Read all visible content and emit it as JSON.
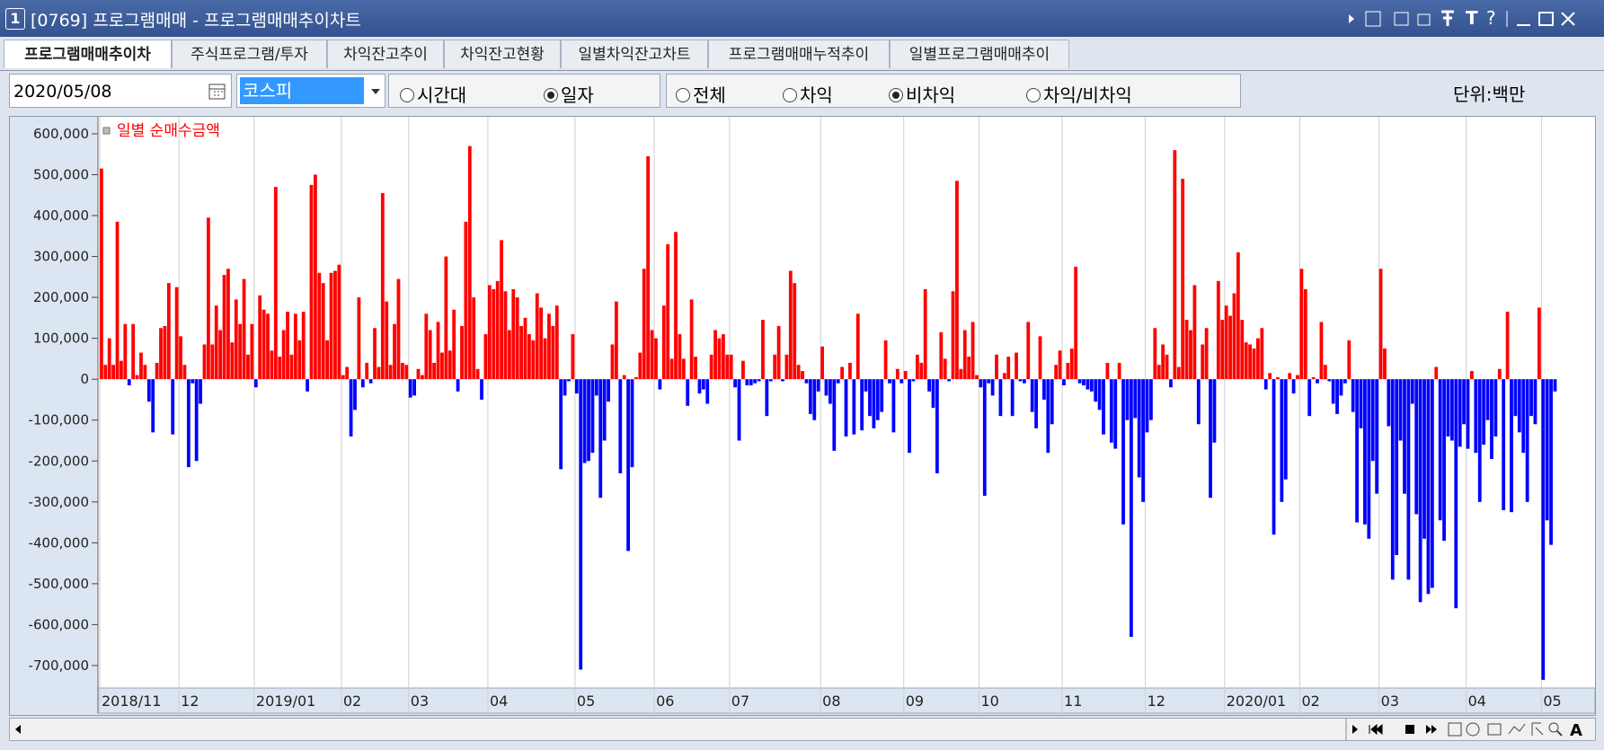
{
  "window": {
    "number": "1",
    "title": "[0769] 프로그램매매 - 프로그램매매추이차트",
    "title_buttons": [
      "T",
      "?"
    ],
    "tabs": [
      "프로그램매매추이차",
      "주식프로그램/투자",
      "차익잔고추이",
      "차익잔고현황",
      "일별차익잔고차트",
      "프로그램매매누적추이",
      "일별프로그램매매추이"
    ],
    "controls": {
      "date": "2020/05/08",
      "market": "코스피",
      "period_options": [
        "시간대",
        "일자"
      ],
      "type_options": [
        "전체",
        "차익",
        "비차익",
        "차익/비차익"
      ],
      "unit": "단위:백만"
    },
    "toolbar_text": "A"
  },
  "chart_data": {
    "type": "bar",
    "categories": [
      "2018/11",
      null,
      null,
      null,
      null,
      null,
      null,
      null,
      null,
      null,
      null,
      null,
      null,
      null,
      null,
      null,
      null,
      null,
      null,
      null,
      "12",
      null,
      null,
      null,
      null,
      null,
      null,
      null,
      null,
      null,
      null,
      null,
      null,
      null,
      null,
      null,
      null,
      null,
      null,
      "2019/01",
      null,
      null,
      null,
      null,
      null,
      null,
      null,
      null,
      null,
      null,
      null,
      null,
      null,
      null,
      null,
      null,
      null,
      null,
      null,
      null,
      null,
      "02",
      null,
      null,
      null,
      null,
      null,
      null,
      null,
      null,
      null,
      null,
      null,
      null,
      null,
      null,
      null,
      null,
      "03",
      null,
      null,
      null,
      null,
      null,
      null,
      null,
      null,
      null,
      null,
      null,
      null,
      null,
      null,
      null,
      null,
      null,
      null,
      null,
      "04",
      null,
      null,
      null,
      null,
      null,
      null,
      null,
      null,
      null,
      null,
      null,
      null,
      null,
      null,
      null,
      null,
      null,
      null,
      null,
      null,
      null,
      "05",
      null,
      null,
      null,
      null,
      null,
      null,
      null,
      null,
      null,
      null,
      null,
      null,
      null,
      null,
      null,
      null,
      null,
      null,
      null,
      "06",
      null,
      null,
      null,
      null,
      null,
      null,
      null,
      null,
      null,
      null,
      null,
      null,
      null,
      null,
      null,
      null,
      null,
      null,
      "07",
      null,
      null,
      null,
      null,
      null,
      null,
      null,
      null,
      null,
      null,
      null,
      null,
      null,
      null,
      null,
      null,
      null,
      null,
      null,
      null,
      null,
      null,
      "08",
      null,
      null,
      null,
      null,
      null,
      null,
      null,
      null,
      null,
      null,
      null,
      null,
      null,
      null,
      null,
      null,
      null,
      null,
      null,
      null,
      "09",
      null,
      null,
      null,
      null,
      null,
      null,
      null,
      null,
      null,
      null,
      null,
      null,
      null,
      null,
      null,
      null,
      null,
      null,
      "10",
      null,
      null,
      null,
      null,
      null,
      null,
      null,
      null,
      null,
      null,
      null,
      null,
      null,
      null,
      null,
      null,
      null,
      null,
      null,
      null,
      "11",
      null,
      null,
      null,
      null,
      null,
      null,
      null,
      null,
      null,
      null,
      null,
      null,
      null,
      null,
      null,
      null,
      null,
      null,
      null,
      null,
      "12",
      null,
      null,
      null,
      null,
      null,
      null,
      null,
      null,
      null,
      null,
      null,
      null,
      null,
      null,
      null,
      null,
      null,
      null,
      null,
      "2020/01",
      null,
      null,
      null,
      null,
      null,
      null,
      null,
      null,
      null,
      null,
      null,
      null,
      null,
      null,
      null,
      null,
      null,
      null,
      "02",
      null,
      null,
      null,
      null,
      null,
      null,
      null,
      null,
      null,
      null,
      null,
      null,
      null,
      null,
      null,
      null,
      null,
      null,
      null,
      "03",
      null,
      null,
      null,
      null,
      null,
      null,
      null,
      null,
      null,
      null,
      null,
      null,
      null,
      null,
      null,
      null,
      null,
      null,
      null,
      null,
      null,
      "04",
      null,
      null,
      null,
      null,
      null,
      null,
      null,
      null,
      null,
      null,
      null,
      null,
      null,
      null,
      null,
      null,
      null,
      null,
      "05",
      null,
      null,
      null
    ],
    "series": [
      {
        "name": "일별 순매수금액",
        "positive_color": "#ff0000",
        "negative_color": "#0000ff",
        "values": [
          515000,
          35000,
          100000,
          35000,
          385000,
          45000,
          135000,
          -15000,
          135000,
          10000,
          65000,
          35000,
          -55000,
          -130000,
          40000,
          125000,
          130000,
          235000,
          -135000,
          225000,
          105000,
          35000,
          -215000,
          -10000,
          -200000,
          -60000,
          85000,
          395000,
          85000,
          180000,
          120000,
          255000,
          270000,
          90000,
          195000,
          135000,
          245000,
          60000,
          135000,
          -20000,
          205000,
          170000,
          160000,
          70000,
          470000,
          55000,
          120000,
          165000,
          60000,
          160000,
          95000,
          165000,
          -30000,
          475000,
          500000,
          260000,
          235000,
          95000,
          260000,
          265000,
          280000,
          10000,
          30000,
          -140000,
          -75000,
          200000,
          -20000,
          40000,
          -10000,
          125000,
          30000,
          455000,
          190000,
          35000,
          135000,
          245000,
          40000,
          35000,
          -45000,
          -40000,
          25000,
          10000,
          160000,
          120000,
          40000,
          140000,
          65000,
          300000,
          70000,
          170000,
          -30000,
          130000,
          385000,
          570000,
          200000,
          25000,
          -50000,
          110000,
          230000,
          220000,
          240000,
          340000,
          215000,
          120000,
          220000,
          200000,
          130000,
          150000,
          110000,
          95000,
          210000,
          175000,
          100000,
          160000,
          130000,
          180000,
          -220000,
          -40000,
          -5000,
          110000,
          -35000,
          -710000,
          -205000,
          -200000,
          -180000,
          -40000,
          -290000,
          -150000,
          -55000,
          85000,
          190000,
          -230000,
          10000,
          -420000,
          -215000,
          5000,
          65000,
          270000,
          545000,
          120000,
          100000,
          -25000,
          180000,
          330000,
          50000,
          360000,
          110000,
          50000,
          -65000,
          195000,
          55000,
          -35000,
          -25000,
          -60000,
          60000,
          120000,
          100000,
          110000,
          60000,
          60000,
          -20000,
          -150000,
          45000,
          -15000,
          -15000,
          -10000,
          -5000,
          145000,
          -90000,
          -5000,
          60000,
          130000,
          -5000,
          60000,
          265000,
          235000,
          35000,
          20000,
          -10000,
          -85000,
          -100000,
          -30000,
          80000,
          -40000,
          -60000,
          -175000,
          -10000,
          30000,
          -140000,
          40000,
          -135000,
          160000,
          -125000,
          -30000,
          -90000,
          -120000,
          -100000,
          -80000,
          95000,
          -10000,
          -130000,
          25000,
          -10000,
          20000,
          -180000,
          -5000,
          60000,
          40000,
          220000,
          -30000,
          -70000,
          -230000,
          115000,
          50000,
          -5000,
          215000,
          485000,
          25000,
          120000,
          55000,
          140000,
          10000,
          -20000,
          -285000,
          -10000,
          -40000,
          60000,
          -90000,
          15000,
          55000,
          -90000,
          65000,
          -5000,
          -10000,
          140000,
          -80000,
          -120000,
          105000,
          -50000,
          -180000,
          -110000,
          35000,
          70000,
          -15000,
          40000,
          75000,
          275000,
          -10000,
          -15000,
          -25000,
          -30000,
          -55000,
          -75000,
          -135000,
          40000,
          -155000,
          -170000,
          40000,
          -355000,
          -100000,
          -630000,
          -95000,
          -240000,
          -300000,
          -130000,
          -100000,
          125000,
          35000,
          85000,
          60000,
          -20000,
          560000,
          30000,
          490000,
          145000,
          120000,
          230000,
          -110000,
          85000,
          125000,
          -290000,
          -155000,
          240000,
          145000,
          180000,
          155000,
          210000,
          310000,
          145000,
          90000,
          85000,
          75000,
          100000,
          125000,
          -25000,
          15000,
          -380000,
          5000,
          -300000,
          -245000,
          15000,
          -35000,
          10000,
          270000,
          220000,
          -90000,
          5000,
          -10000,
          140000,
          35000,
          -5000,
          -60000,
          -85000,
          -40000,
          -10000,
          95000,
          -80000,
          -350000,
          -120000,
          -355000,
          -390000,
          -200000,
          -280000,
          270000,
          75000,
          -115000,
          -490000,
          -430000,
          -150000,
          -280000,
          -490000,
          -60000,
          -330000,
          -545000,
          -390000,
          -525000,
          -510000,
          30000,
          -345000,
          -395000,
          -140000,
          -150000,
          -560000,
          -165000,
          -110000,
          -170000,
          20000,
          -180000,
          -300000,
          -160000,
          -100000,
          -195000,
          -140000,
          25000,
          -320000,
          165000,
          -325000,
          -90000,
          -130000,
          -180000,
          -300000,
          -90000,
          -110000,
          175000,
          -735000,
          -345000,
          -405000,
          -30000
        ]
      }
    ],
    "ylim": [
      -755000,
      635000
    ],
    "yticks": [
      {
        "value": -700000,
        "label": "-700,000"
      },
      {
        "value": -600000,
        "label": "-600,000"
      },
      {
        "value": -500000,
        "label": "-500,000"
      },
      {
        "value": -400000,
        "label": "-400,000"
      },
      {
        "value": -300000,
        "label": "-300,000"
      },
      {
        "value": -200000,
        "label": "-200,000"
      },
      {
        "value": -100000,
        "label": "-100,000"
      },
      0,
      {
        "value": 100000,
        "label": "100,000"
      },
      {
        "value": 200000,
        "label": "200,000"
      },
      {
        "value": 300000,
        "label": "300,000"
      },
      {
        "value": 400000,
        "label": "400,000"
      },
      {
        "value": 500000,
        "label": "500,000"
      },
      {
        "value": 600000,
        "label": "600,000"
      }
    ],
    "x_grid": true,
    "y_grid": false
  }
}
